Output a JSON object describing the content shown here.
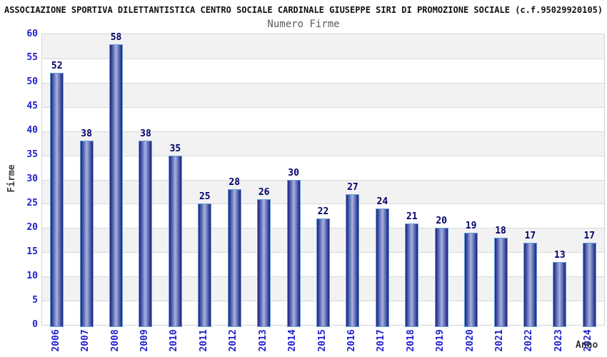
{
  "title": "ASSOCIAZIONE SPORTIVA DILETTANTISTICA CENTRO SOCIALE CARDINALE GIUSEPPE SIRI DI PROMOZIONE SOCIALE (c.f.95029920105)",
  "chart_data": {
    "type": "bar",
    "title": "Numero Firme",
    "xlabel": "Anno",
    "ylabel": "Firme",
    "categories": [
      "2006",
      "2007",
      "2008",
      "2009",
      "2010",
      "2011",
      "2012",
      "2013",
      "2014",
      "2015",
      "2016",
      "2017",
      "2018",
      "2019",
      "2020",
      "2021",
      "2022",
      "2023",
      "2024"
    ],
    "values": [
      52,
      38,
      58,
      38,
      35,
      25,
      28,
      26,
      30,
      22,
      27,
      24,
      21,
      20,
      19,
      18,
      17,
      13,
      17
    ],
    "ylim": [
      0,
      60
    ],
    "ytick_step": 5,
    "grid": true,
    "legend": "none",
    "colors": {
      "tick_label": "#2121cd",
      "value_label": "#00006b",
      "bar_dark": "#20207c",
      "bar_mid": "#5262ae",
      "bar_light": "#a8b3e0",
      "bar_border": "#63a0d8",
      "band_gray": "#f2f2f2",
      "band_white": "#ffffff",
      "gridline": "#d9d9d9",
      "plot_border": "#d4d4d4",
      "title_color": "#111111",
      "subtitle_color": "#5c5c5c"
    }
  }
}
